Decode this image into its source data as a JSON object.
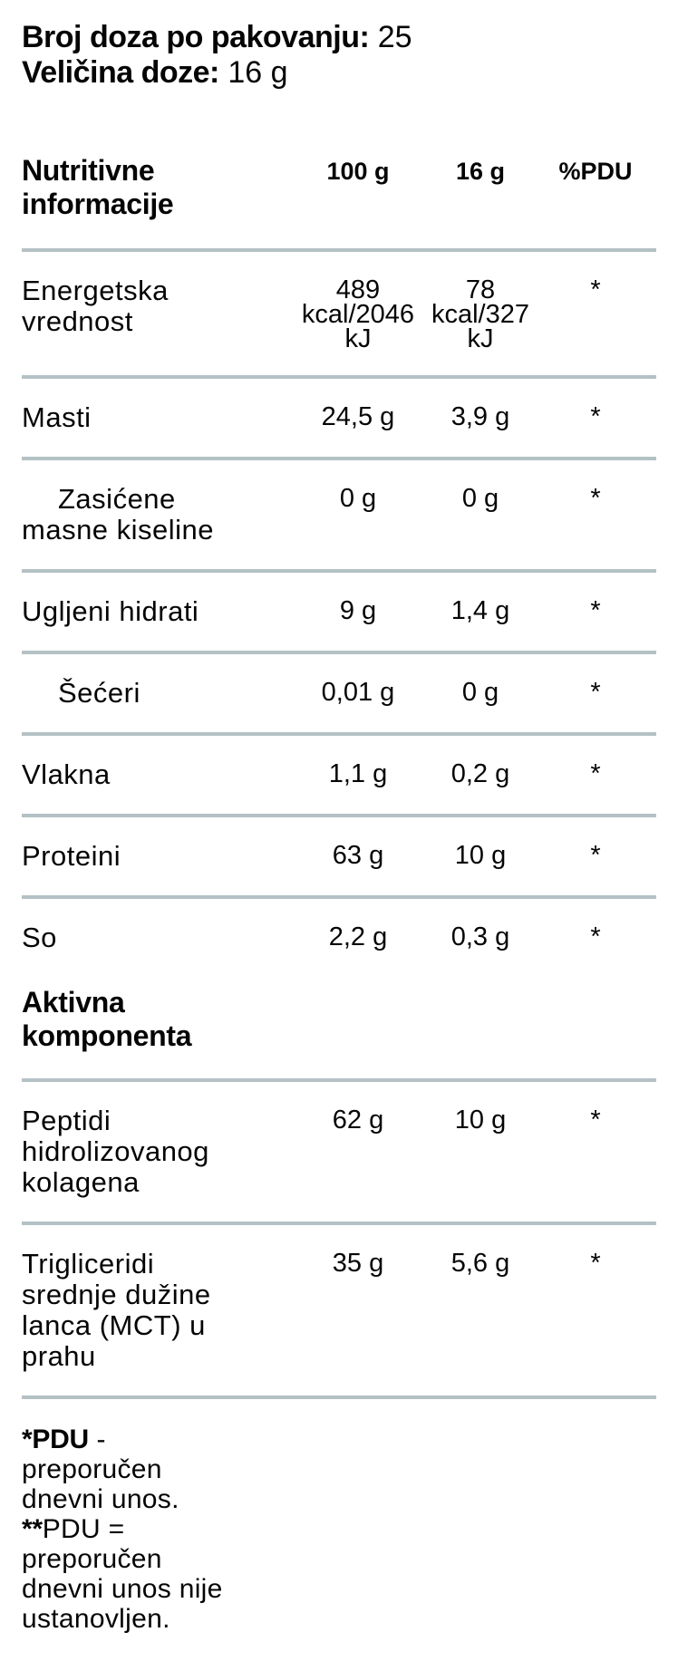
{
  "serving_info": {
    "doses_label": "Broj doza po pakovanju:",
    "doses_value": "25",
    "size_label": "Veličina doze:",
    "size_value": "16 g"
  },
  "table": {
    "header": {
      "title": "Nutritivne\ninformacije",
      "col_100g": "100 g",
      "col_16g": "16 g",
      "col_pdu": "%PDU"
    },
    "nutrition_rows": [
      {
        "label": "Energetska\nvrednost",
        "per_100g": "489\nkcal/2046\nkJ",
        "per_16g": "78\nkcal/327\nkJ",
        "pdu": "*"
      },
      {
        "label": "Masti",
        "per_100g": "24,5 g",
        "per_16g": "3,9 g",
        "pdu": "*"
      },
      {
        "label": "Zasićene\nmasne kiseline",
        "per_100g": "0 g",
        "per_16g": "0 g",
        "pdu": "*"
      },
      {
        "label": "Ugljeni hidrati",
        "per_100g": "9 g",
        "per_16g": "1,4 g",
        "pdu": "*"
      },
      {
        "label": "Šećeri",
        "per_100g": "0,01 g",
        "per_16g": "0 g",
        "pdu": "*"
      },
      {
        "label": "Vlakna",
        "per_100g": "1,1 g",
        "per_16g": "0,2 g",
        "pdu": "*"
      },
      {
        "label": "Proteini",
        "per_100g": "63 g",
        "per_16g": "10 g",
        "pdu": "*"
      },
      {
        "label": "So",
        "per_100g": "2,2 g",
        "per_16g": "0,3 g",
        "pdu": "*"
      }
    ],
    "active_section": {
      "heading": "Aktivna\nkomponenta",
      "rows": [
        {
          "label": "Peptidi\nhidrolizovanog\nkolagena",
          "per_100g": "62 g",
          "per_16g": "10 g",
          "pdu": "*"
        },
        {
          "label": "Trigliceridi\nsrednje dužine\nlanca (MCT) u\nprahu",
          "per_100g": "35 g",
          "per_16g": "5,6 g",
          "pdu": "*"
        }
      ]
    }
  },
  "footnotes": {
    "note1_bold": "*PDU",
    "note1_text": " -\npreporučen\ndnevni unos.",
    "note2_bold": "**",
    "note2_text": "PDU =\npreporučen\ndnevni unos nije\nustanovljen."
  },
  "colors": {
    "divider": "#b4c1c5",
    "text": "#050505",
    "background": "#ffffff"
  }
}
